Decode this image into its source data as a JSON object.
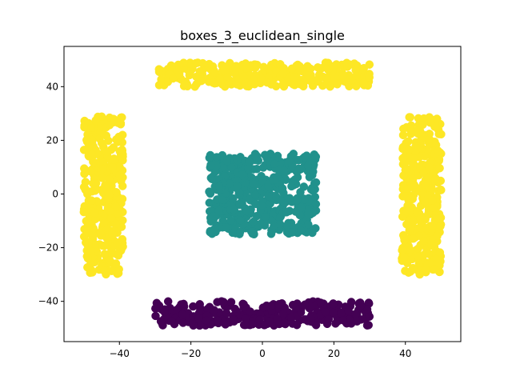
{
  "chart_data": {
    "type": "scatter",
    "title": "boxes_3_euclidean_single",
    "xlabel": "",
    "ylabel": "",
    "xlim": [
      -55.5,
      55.5
    ],
    "ylim": [
      -55,
      55
    ],
    "xticks": [
      -40,
      -20,
      0,
      20,
      40
    ],
    "xtick_labels": [
      "−40",
      "−20",
      "0",
      "20",
      "40"
    ],
    "yticks": [
      -40,
      -20,
      0,
      20,
      40
    ],
    "ytick_labels": [
      "−40",
      "−20",
      "0",
      "20",
      "40"
    ],
    "grid": false,
    "legend": "none",
    "colormap": "viridis",
    "clusters": [
      {
        "color": "#fde725",
        "regions": [
          {
            "x": [
              -29,
              30
            ],
            "y": [
              40,
              49
            ]
          },
          {
            "x": [
              -50,
              -39
            ],
            "y": [
              -30,
              29
            ]
          },
          {
            "x": [
              39,
              50
            ],
            "y": [
              -30,
              29
            ]
          }
        ]
      },
      {
        "color": "#21918c",
        "regions": [
          {
            "x": [
              -15,
              15
            ],
            "y": [
              -15,
              15
            ]
          }
        ]
      },
      {
        "color": "#440154",
        "regions": [
          {
            "x": [
              -30,
              30
            ],
            "y": [
              -49,
              -40
            ]
          }
        ]
      }
    ]
  }
}
